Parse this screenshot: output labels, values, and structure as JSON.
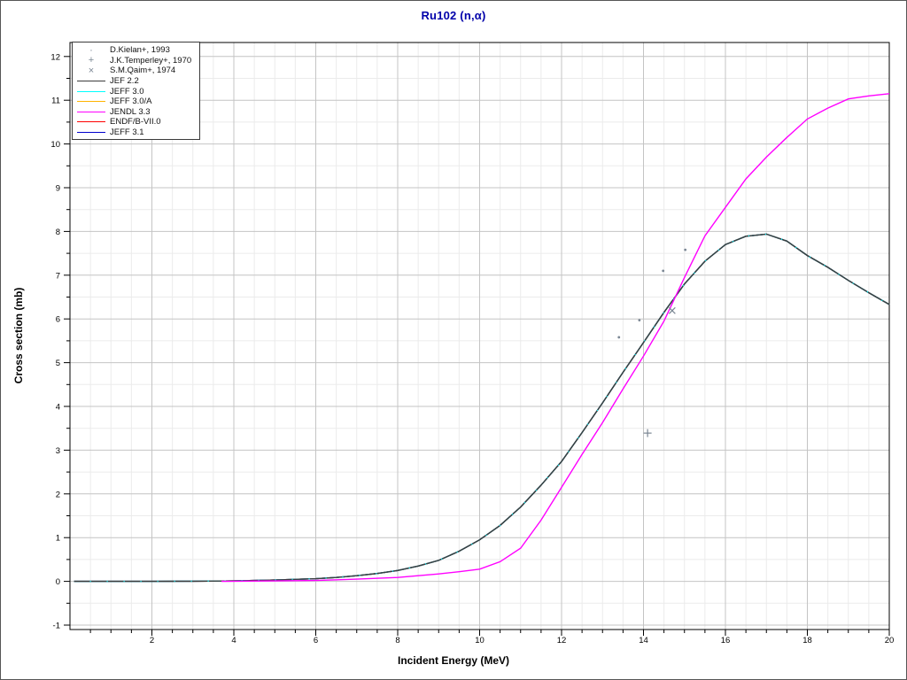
{
  "window": {
    "background": "#ffffff",
    "border_color": "#555555"
  },
  "chart_data": {
    "type": "line",
    "title": "Ru102 (n,α)",
    "title_color": "#0000AA",
    "xlabel": "Incident Energy (MeV)",
    "ylabel": "Cross section (mb)",
    "xlim": [
      0,
      20
    ],
    "ylim": [
      -1.1,
      12.3
    ],
    "x_major_ticks": [
      2,
      4,
      6,
      8,
      10,
      12,
      14,
      16,
      18,
      20
    ],
    "y_major_ticks": [
      -1,
      0,
      1,
      2,
      3,
      4,
      5,
      6,
      7,
      8,
      9,
      10,
      11,
      12
    ],
    "minor_step_x": 0.5,
    "minor_step_y": 0.5,
    "grid": "on",
    "colors": {
      "major_grid": "#c4c4c4",
      "minor_grid": "#ebebeb",
      "axis": "#000000",
      "marker_gray": "#7b8794"
    },
    "series": [
      {
        "name": "ENDF/B-VII.0",
        "color": "#ff0000",
        "same_as": "JEF 2.2"
      },
      {
        "name": "JEFF 3.0/A",
        "color": "#ffb300",
        "same_as": "JEF 2.2"
      },
      {
        "name": "JEFF 3.1",
        "color": "#0000cd",
        "same_as": "JEF 2.2"
      },
      {
        "name": "JEFF 3.0",
        "color": "#00ffff",
        "same_as": "JEF 2.2"
      },
      {
        "name": "JEF 2.2",
        "color": "#3c3c3c",
        "dash": [
          18,
          1
        ],
        "points": [
          [
            0.1,
            0
          ],
          [
            2,
            0
          ],
          [
            3,
            0.005
          ],
          [
            4,
            0.01
          ],
          [
            5,
            0.03
          ],
          [
            6,
            0.06
          ],
          [
            6.5,
            0.09
          ],
          [
            7,
            0.13
          ],
          [
            7.5,
            0.18
          ],
          [
            8,
            0.25
          ],
          [
            8.5,
            0.35
          ],
          [
            9,
            0.48
          ],
          [
            9.5,
            0.69
          ],
          [
            10,
            0.95
          ],
          [
            10.5,
            1.28
          ],
          [
            11,
            1.7
          ],
          [
            11.5,
            2.2
          ],
          [
            12,
            2.74
          ],
          [
            12.5,
            3.4
          ],
          [
            13,
            4.08
          ],
          [
            13.5,
            4.78
          ],
          [
            14,
            5.46
          ],
          [
            14.5,
            6.15
          ],
          [
            15,
            6.8
          ],
          [
            15.5,
            7.32
          ],
          [
            16,
            7.7
          ],
          [
            16.5,
            7.89
          ],
          [
            17,
            7.94
          ],
          [
            17.5,
            7.78
          ],
          [
            18,
            7.45
          ],
          [
            18.5,
            7.18
          ],
          [
            19,
            6.88
          ],
          [
            19.5,
            6.6
          ],
          [
            20,
            6.33
          ]
        ]
      },
      {
        "name": "JENDL 3.3",
        "color": "#ff00ff",
        "points": [
          [
            3.7,
            0
          ],
          [
            5,
            0.01
          ],
          [
            6,
            0.02
          ],
          [
            7,
            0.05
          ],
          [
            8,
            0.09
          ],
          [
            9,
            0.17
          ],
          [
            9.5,
            0.22
          ],
          [
            10,
            0.28
          ],
          [
            10.5,
            0.45
          ],
          [
            11,
            0.76
          ],
          [
            11.5,
            1.4
          ],
          [
            12,
            2.15
          ],
          [
            12.5,
            2.9
          ],
          [
            13,
            3.63
          ],
          [
            13.5,
            4.4
          ],
          [
            14,
            5.15
          ],
          [
            14.5,
            5.95
          ],
          [
            15,
            6.95
          ],
          [
            15.5,
            7.9
          ],
          [
            16,
            8.55
          ],
          [
            16.5,
            9.2
          ],
          [
            17,
            9.7
          ],
          [
            17.5,
            10.15
          ],
          [
            18,
            10.57
          ],
          [
            18.5,
            10.82
          ],
          [
            19,
            11.03
          ],
          [
            19.5,
            11.1
          ],
          [
            20,
            11.15
          ]
        ]
      }
    ],
    "datasets": [
      {
        "name": "D.Kielan+, 1993",
        "marker": "dot",
        "color": "#7b8794",
        "points": [
          [
            13.4,
            5.58
          ],
          [
            13.9,
            5.97
          ],
          [
            14.48,
            7.1
          ],
          [
            15.02,
            7.58
          ]
        ]
      },
      {
        "name": "J.K.Temperley+, 1970",
        "marker": "plus",
        "color": "#7b8794",
        "points": [
          [
            14.1,
            3.39
          ]
        ]
      },
      {
        "name": "S.M.Qaim+, 1974",
        "marker": "cross",
        "color": "#7b8794",
        "points": [
          [
            14.7,
            6.19
          ]
        ]
      }
    ],
    "legend": {
      "position": "top-left",
      "entries": [
        {
          "kind": "marker",
          "marker": "dot",
          "glyph": "·",
          "color": "#7b8794",
          "label": "D.Kielan+, 1993"
        },
        {
          "kind": "marker",
          "marker": "plus",
          "glyph": "+",
          "color": "#7b8794",
          "label": "J.K.Temperley+, 1970"
        },
        {
          "kind": "marker",
          "marker": "cross",
          "glyph": "×",
          "color": "#7b8794",
          "label": "S.M.Qaim+, 1974"
        },
        {
          "kind": "line",
          "color": "#3c3c3c",
          "label": "JEF 2.2"
        },
        {
          "kind": "line",
          "color": "#00ffff",
          "label": "JEFF 3.0"
        },
        {
          "kind": "line",
          "color": "#ffb300",
          "label": "JEFF 3.0/A"
        },
        {
          "kind": "line",
          "color": "#ff00ff",
          "label": "JENDL 3.3"
        },
        {
          "kind": "line",
          "color": "#ff0000",
          "label": "ENDF/B-VII.0"
        },
        {
          "kind": "line",
          "color": "#0000cd",
          "label": "JEFF 3.1"
        }
      ]
    }
  }
}
